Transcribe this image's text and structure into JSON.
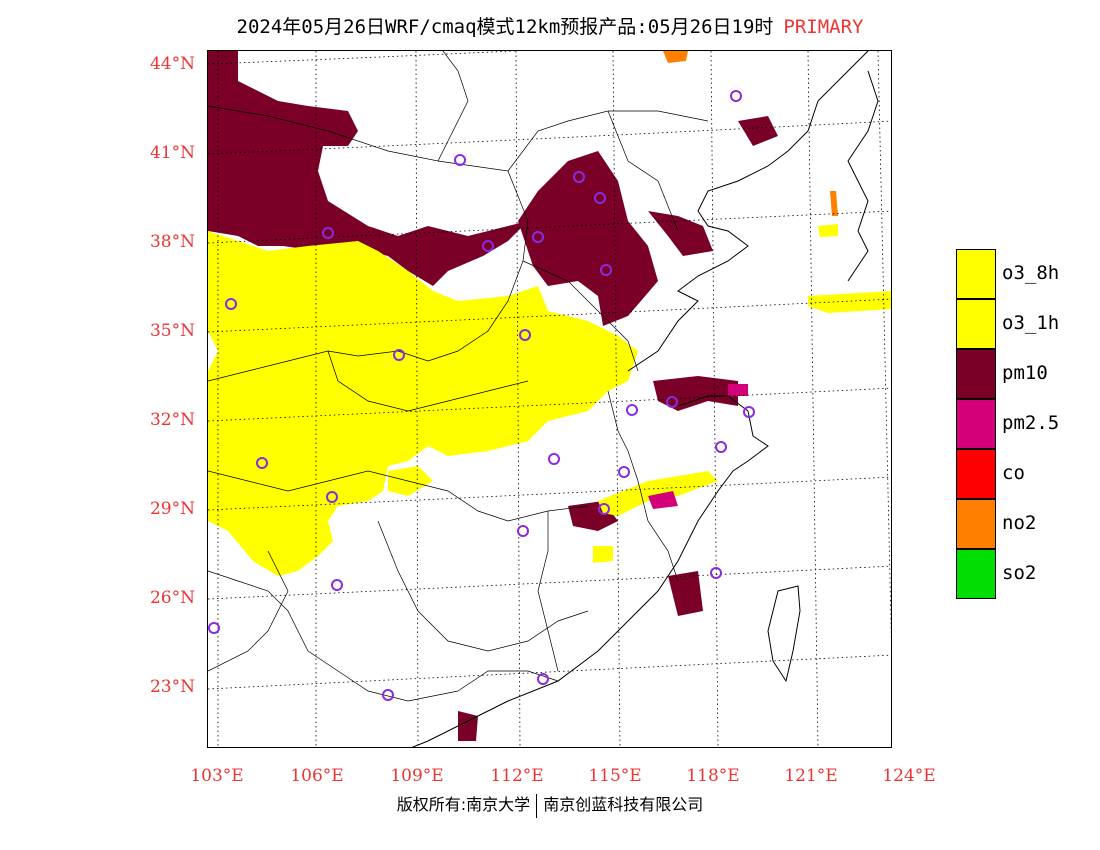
{
  "header": {
    "title": "2024年05月26日WRF/cmaq模式12km预报产品:05月26日19时",
    "tag": "PRIMARY"
  },
  "axes": {
    "lat_labels": [
      "44°N",
      "41°N",
      "38°N",
      "35°N",
      "32°N",
      "29°N",
      "26°N",
      "23°N"
    ],
    "lon_labels": [
      "103°E",
      "106°E",
      "109°E",
      "112°E",
      "115°E",
      "118°E",
      "121°E",
      "124°E"
    ]
  },
  "legend": {
    "items": [
      {
        "label": "o3_8h",
        "color": "#ffff00"
      },
      {
        "label": "o3_1h",
        "color": "#ffff00"
      },
      {
        "label": "pm10",
        "color": "#7a0028"
      },
      {
        "label": "pm2.5",
        "color": "#d4007a"
      },
      {
        "label": "co",
        "color": "#ff0000"
      },
      {
        "label": "no2",
        "color": "#ff7f00"
      },
      {
        "label": "so2",
        "color": "#00dd00"
      }
    ]
  },
  "footer": {
    "left": "版权所有:南京大学",
    "right": "南京创蓝科技有限公司"
  },
  "map": {
    "primary_pollutant_colors": {
      "o3": "#ffff00",
      "pm10": "#7a0028",
      "pm25": "#d4007a",
      "no2": "#ff7f00"
    },
    "station_marker_color": "#8a2be2"
  }
}
